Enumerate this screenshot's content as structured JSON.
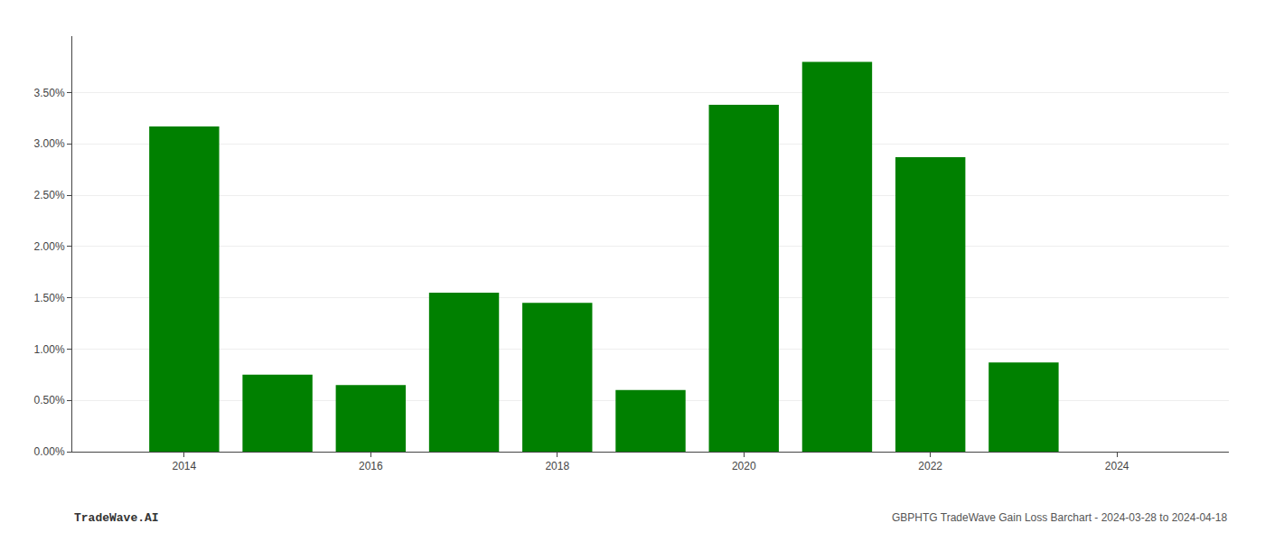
{
  "chart_data": {
    "type": "bar",
    "x": [
      2014,
      2015,
      2016,
      2017,
      2018,
      2019,
      2020,
      2021,
      2022,
      2023,
      2024
    ],
    "values": [
      0.0317,
      0.0075,
      0.0065,
      0.0155,
      0.0145,
      0.006,
      0.0338,
      0.038,
      0.0287,
      0.0087,
      0.0
    ],
    "color": "#008000",
    "xlim": [
      2012.8,
      2025.2
    ],
    "xticks": [
      2014,
      2016,
      2018,
      2020,
      2022,
      2024
    ],
    "ylim": [
      0,
      0.0405
    ],
    "yticks": [
      {
        "value": 0.0,
        "label": "0.00%"
      },
      {
        "value": 0.005,
        "label": "0.50%"
      },
      {
        "value": 0.01,
        "label": "1.00%"
      },
      {
        "value": 0.015,
        "label": "1.50%"
      },
      {
        "value": 0.02,
        "label": "2.00%"
      },
      {
        "value": 0.025,
        "label": "2.50%"
      },
      {
        "value": 0.03,
        "label": "3.00%"
      },
      {
        "value": 0.035,
        "label": "3.50%"
      }
    ],
    "grid": "y",
    "annotations": [
      "TradeWave.AI",
      "GBPHTG TradeWave Gain Loss Barchart - 2024-03-28 to 2024-04-18"
    ]
  }
}
